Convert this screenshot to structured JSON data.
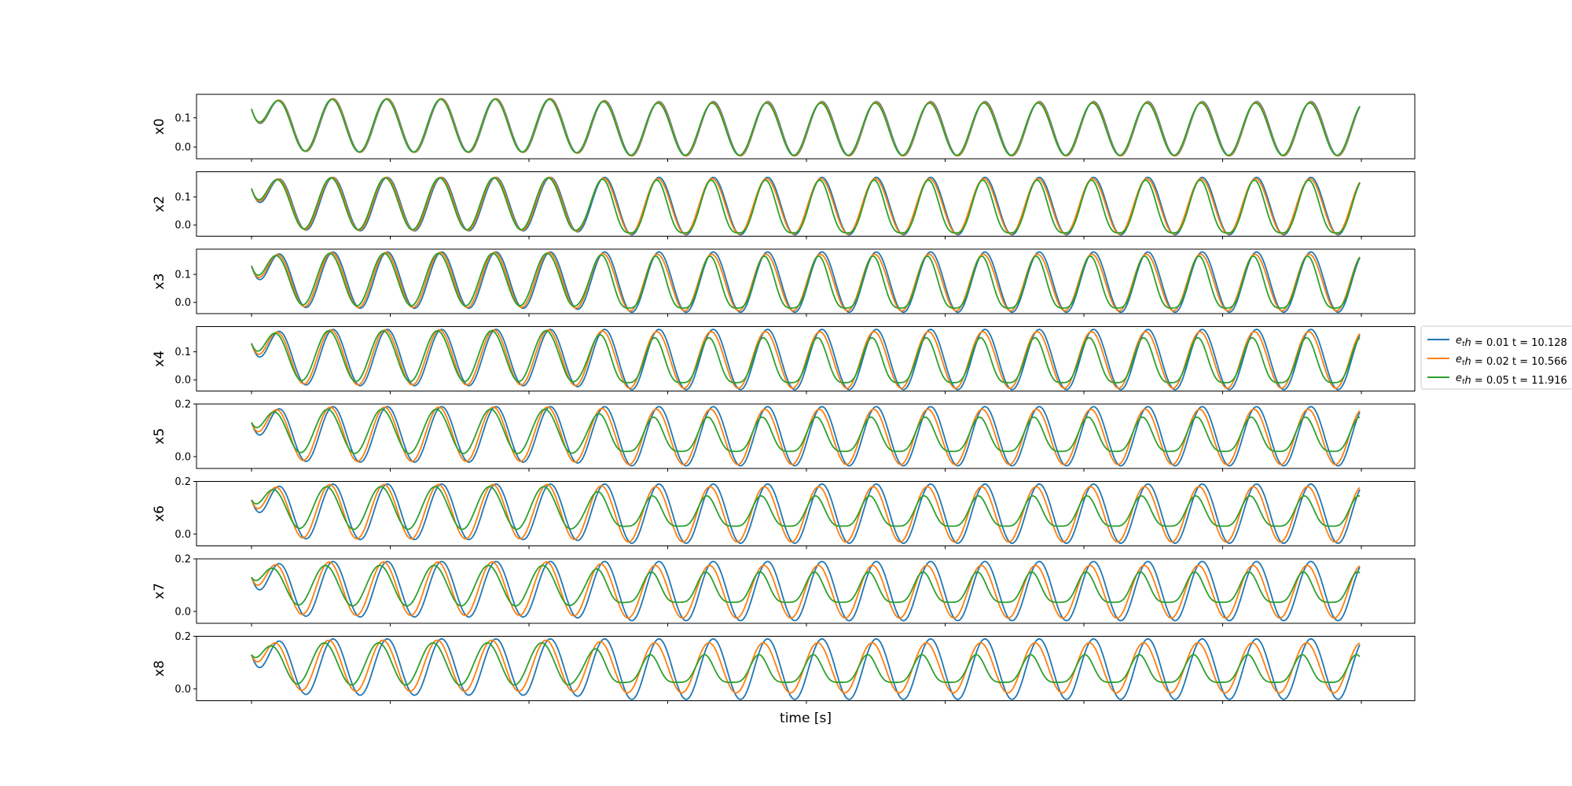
{
  "chart_data": {
    "type": "line",
    "xlabel": "time [s]",
    "x_ticks_labeled": false,
    "x_tick_count": 9,
    "samples_per_subplot": 1200,
    "legend": {
      "placement": "right",
      "entries": [
        {
          "sub": "t",
          "label_pre": "e",
          "label_post": "h = 0.01 t = 10.128",
          "color": "#1f77b4"
        },
        {
          "sub": "t",
          "label_pre": "e",
          "label_post": "h = 0.02 t = 10.566",
          "color": "#ff7f0e"
        },
        {
          "sub": "t",
          "label_pre": "e",
          "label_post": "h = 0.05 t = 11.916",
          "color": "#2ca02c"
        }
      ]
    },
    "series_colors": [
      "#1f77b4",
      "#ff7f0e",
      "#2ca02c"
    ],
    "subplots": [
      {
        "ylabel": "x0",
        "ylim": [
          -0.04,
          0.18
        ],
        "yticks": [
          0.0,
          0.1
        ],
        "ytick_labels": [
          "0.0",
          "0.1"
        ],
        "y0": 0.13,
        "series": [
          {
            "amp_top": 0.165,
            "amp_top2": 0.155,
            "bottom": -0.03,
            "sharp": 0,
            "lag": 0
          },
          {
            "amp_top": 0.165,
            "amp_top2": 0.153,
            "bottom": -0.03,
            "sharp": 0,
            "lag": 0.01
          },
          {
            "amp_top": 0.163,
            "amp_top2": 0.15,
            "bottom": -0.028,
            "sharp": 0,
            "lag": 0.02
          }
        ]
      },
      {
        "ylabel": "x2",
        "ylim": [
          -0.04,
          0.19
        ],
        "yticks": [
          0.0,
          0.1
        ],
        "ytick_labels": [
          "0.0",
          "0.1"
        ],
        "y0": 0.13,
        "series": [
          {
            "amp_top": 0.17,
            "amp_top2": 0.17,
            "bottom": -0.035,
            "sharp": 0,
            "lag": 0
          },
          {
            "amp_top": 0.17,
            "amp_top2": 0.165,
            "bottom": -0.032,
            "sharp": 0,
            "lag": 0.02
          },
          {
            "amp_top": 0.168,
            "amp_top2": 0.16,
            "bottom": -0.028,
            "sharp": 0.25,
            "lag": 0.04
          }
        ]
      },
      {
        "ylabel": "x3",
        "ylim": [
          -0.04,
          0.19
        ],
        "yticks": [
          0.0,
          0.1
        ],
        "ytick_labels": [
          "0.0",
          "0.1"
        ],
        "y0": 0.13,
        "series": [
          {
            "amp_top": 0.18,
            "amp_top2": 0.18,
            "bottom": -0.035,
            "sharp": 0,
            "lag": 0
          },
          {
            "amp_top": 0.178,
            "amp_top2": 0.172,
            "bottom": -0.03,
            "sharp": 0,
            "lag": 0.03
          },
          {
            "amp_top": 0.175,
            "amp_top2": 0.165,
            "bottom": -0.02,
            "sharp": 0.3,
            "lag": 0.06
          }
        ]
      },
      {
        "ylabel": "x4",
        "ylim": [
          -0.04,
          0.19
        ],
        "yticks": [
          0.0,
          0.1
        ],
        "ytick_labels": [
          "0.0",
          "0.1"
        ],
        "y0": 0.13,
        "series": [
          {
            "amp_top": 0.18,
            "amp_top2": 0.18,
            "bottom": -0.035,
            "sharp": 0,
            "lag": 0
          },
          {
            "amp_top": 0.178,
            "amp_top2": 0.172,
            "bottom": -0.03,
            "sharp": 0,
            "lag": 0.04
          },
          {
            "amp_top": 0.175,
            "amp_top2": 0.15,
            "bottom": -0.01,
            "sharp": 0.35,
            "lag": 0.08
          }
        ]
      },
      {
        "ylabel": "x5",
        "ylim": [
          -0.045,
          0.2
        ],
        "yticks": [
          0.0,
          0.2
        ],
        "ytick_labels": [
          "0.0",
          "0.2"
        ],
        "y0": 0.13,
        "series": [
          {
            "amp_top": 0.19,
            "amp_top2": 0.19,
            "bottom": -0.035,
            "sharp": 0,
            "lag": 0
          },
          {
            "amp_top": 0.188,
            "amp_top2": 0.18,
            "bottom": -0.03,
            "sharp": 0,
            "lag": 0.05
          },
          {
            "amp_top": 0.18,
            "amp_top2": 0.15,
            "bottom": 0.02,
            "sharp": 0.4,
            "lag": 0.1
          }
        ]
      },
      {
        "ylabel": "x6",
        "ylim": [
          -0.045,
          0.2
        ],
        "yticks": [
          0.0,
          0.2
        ],
        "ytick_labels": [
          "0.0",
          "0.2"
        ],
        "y0": 0.13,
        "series": [
          {
            "amp_top": 0.19,
            "amp_top2": 0.19,
            "bottom": -0.035,
            "sharp": 0,
            "lag": 0
          },
          {
            "amp_top": 0.188,
            "amp_top2": 0.18,
            "bottom": -0.03,
            "sharp": 0,
            "lag": 0.06
          },
          {
            "amp_top": 0.18,
            "amp_top2": 0.145,
            "bottom": 0.03,
            "sharp": 0.45,
            "lag": 0.12
          }
        ]
      },
      {
        "ylabel": "x7",
        "ylim": [
          -0.045,
          0.2
        ],
        "yticks": [
          0.0,
          0.2
        ],
        "ytick_labels": [
          "0.0",
          "0.2"
        ],
        "y0": 0.13,
        "series": [
          {
            "amp_top": 0.19,
            "amp_top2": 0.19,
            "bottom": -0.035,
            "sharp": 0,
            "lag": 0
          },
          {
            "amp_top": 0.188,
            "amp_top2": 0.175,
            "bottom": -0.025,
            "sharp": 0,
            "lag": 0.07
          },
          {
            "amp_top": 0.175,
            "amp_top2": 0.15,
            "bottom": 0.035,
            "sharp": 0.5,
            "lag": 0.14
          }
        ]
      },
      {
        "ylabel": "x8",
        "ylim": [
          -0.045,
          0.2
        ],
        "yticks": [
          0.0,
          0.2
        ],
        "ytick_labels": [
          "0.0",
          "0.2"
        ],
        "y0": 0.13,
        "series": [
          {
            "amp_top": 0.19,
            "amp_top2": 0.19,
            "bottom": -0.04,
            "sharp": 0,
            "lag": 0
          },
          {
            "amp_top": 0.185,
            "amp_top2": 0.175,
            "bottom": -0.015,
            "sharp": 0,
            "lag": 0.08
          },
          {
            "amp_top": 0.175,
            "amp_top2": 0.13,
            "bottom": 0.025,
            "sharp": 0.55,
            "lag": 0.16
          }
        ]
      }
    ]
  }
}
